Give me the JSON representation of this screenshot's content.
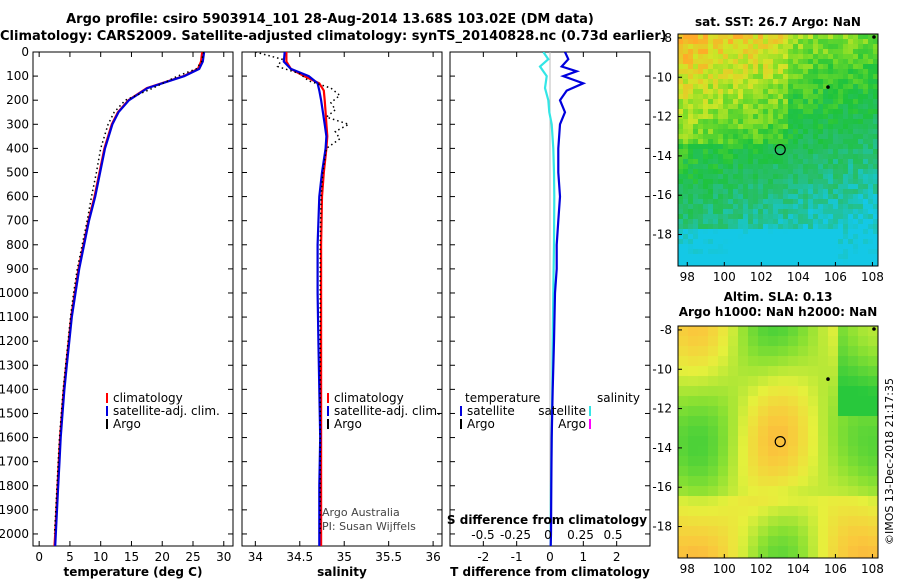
{
  "header": {
    "line1": "Argo profile: csiro 5903914_101 28-Aug-2014 13.68S 103.02E (DM data)",
    "line2": "Climatology: CARS2009. Satellite-adjusted climatology: synTS_20140828.nc (0.73d earlier)"
  },
  "colors": {
    "climatology": "#ff0000",
    "satellite": "#0000dd",
    "argo": "#000000",
    "sal_satellite": "#33e6e6",
    "sal_argo": "#ff00ff"
  },
  "chart_data": [
    {
      "type": "line",
      "id": "temperature",
      "xlabel": "temperature (deg C)",
      "ylabel": "",
      "xlim": [
        -1,
        31.5
      ],
      "ylim": [
        2050,
        0
      ],
      "xticks": [
        0,
        5,
        10,
        15,
        20,
        25,
        30
      ],
      "yticks": [
        0,
        100,
        200,
        300,
        400,
        500,
        600,
        700,
        800,
        900,
        1000,
        1100,
        1200,
        1300,
        1400,
        1500,
        1600,
        1700,
        1800,
        1900,
        2000
      ],
      "legend": [
        "climatology",
        "satellite-adj. clim.",
        "Argo"
      ],
      "series": [
        {
          "name": "climatology",
          "depth": [
            0,
            40,
            70,
            100,
            150,
            200,
            250,
            300,
            400,
            500,
            600,
            700,
            800,
            900,
            1000,
            1100,
            1200,
            1300,
            1400,
            1500,
            1600,
            1700,
            1800,
            1900,
            2000,
            2050
          ],
          "values": [
            26.5,
            26.3,
            25.8,
            23.5,
            17.5,
            14.5,
            12.8,
            11.8,
            10.6,
            9.8,
            9.0,
            8.0,
            7.2,
            6.4,
            5.8,
            5.2,
            4.8,
            4.4,
            4.0,
            3.7,
            3.4,
            3.2,
            3.0,
            2.8,
            2.6,
            2.5
          ]
        },
        {
          "name": "satellite-adj. clim.",
          "depth": [
            0,
            40,
            70,
            100,
            150,
            200,
            250,
            300,
            400,
            500,
            600,
            700,
            800,
            900,
            1000,
            1100,
            1200,
            1300,
            1400,
            1500,
            1600,
            1700,
            1800,
            1900,
            2000,
            2050
          ],
          "values": [
            26.8,
            26.6,
            26.0,
            23.6,
            17.6,
            14.6,
            12.9,
            11.9,
            10.7,
            9.9,
            9.1,
            8.1,
            7.3,
            6.5,
            5.9,
            5.3,
            4.9,
            4.5,
            4.1,
            3.8,
            3.5,
            3.3,
            3.1,
            2.9,
            2.7,
            2.6
          ]
        },
        {
          "name": "Argo",
          "depth": [
            0,
            40,
            70,
            100,
            150,
            200,
            250,
            300,
            400,
            500,
            600,
            700,
            800,
            900,
            1000,
            1100,
            1200,
            1300,
            1400,
            1500,
            1600,
            1700,
            1800,
            1900,
            2000
          ],
          "values": [
            26.7,
            26.4,
            25.5,
            22.5,
            18.5,
            14.0,
            12.2,
            11.2,
            10.0,
            9.3,
            8.5,
            7.8,
            7.0,
            6.2,
            5.6,
            5.1,
            4.7,
            4.3,
            3.9,
            3.6,
            3.3,
            3.1,
            2.9,
            2.7,
            2.5
          ]
        }
      ]
    },
    {
      "type": "line",
      "id": "salinity",
      "xlabel": "salinity",
      "xlim": [
        33.85,
        36.1
      ],
      "ylim": [
        2050,
        0
      ],
      "xticks": [
        34,
        34.5,
        35,
        35.5,
        36
      ],
      "legend": [
        "climatology",
        "satellite-adj. clim.",
        "Argo"
      ],
      "annotations": [
        "Argo Australia",
        "PI: Susan Wijffels"
      ],
      "series": [
        {
          "name": "climatology",
          "depth": [
            0,
            40,
            70,
            100,
            130,
            160,
            200,
            250,
            300,
            350,
            400,
            500,
            600,
            800,
            1000,
            1200,
            1400,
            1600,
            1800,
            2000,
            2050
          ],
          "values": [
            34.35,
            34.35,
            34.4,
            34.55,
            34.72,
            34.77,
            34.78,
            34.79,
            34.8,
            34.81,
            34.8,
            34.77,
            34.75,
            34.74,
            34.74,
            34.74,
            34.74,
            34.74,
            34.74,
            34.74,
            34.74
          ]
        },
        {
          "name": "satellite-adj. clim.",
          "depth": [
            0,
            40,
            70,
            100,
            130,
            160,
            200,
            250,
            300,
            350,
            400,
            500,
            600,
            800,
            1000,
            1200,
            1400,
            1600,
            1800,
            2000,
            2050
          ],
          "values": [
            34.33,
            34.32,
            34.4,
            34.6,
            34.7,
            34.72,
            34.74,
            34.76,
            34.78,
            34.8,
            34.79,
            34.75,
            34.72,
            34.7,
            34.7,
            34.71,
            34.72,
            34.73,
            34.72,
            34.72,
            34.72
          ]
        },
        {
          "name": "Argo",
          "depth": [
            0,
            30,
            60,
            90,
            120,
            150,
            180,
            210,
            240,
            270,
            300,
            330,
            360,
            400,
            500,
            600,
            800,
            1000,
            1200,
            1400,
            1600,
            1800,
            2000
          ],
          "values": [
            34.0,
            34.3,
            34.25,
            34.5,
            34.6,
            34.85,
            34.95,
            34.85,
            34.9,
            34.8,
            35.05,
            34.9,
            34.95,
            34.8,
            34.76,
            34.74,
            34.73,
            34.73,
            34.73,
            34.73,
            34.73,
            34.73,
            34.73
          ]
        }
      ]
    },
    {
      "type": "line",
      "id": "difference",
      "xlabel": "T difference from climatology",
      "xlabel_top": "S difference from climatology",
      "xlim": [
        -3,
        3
      ],
      "ylim": [
        2050,
        0
      ],
      "xticks": [
        -2,
        -1,
        0,
        1,
        2
      ],
      "xticks_top": [
        "-0.5",
        "-0.25",
        "0",
        "0.25",
        "0.5"
      ],
      "legend_left_title": "temperature",
      "legend_right_title": "salinity",
      "legend": [
        "satellite",
        "Argo",
        "satellite",
        "Argo"
      ],
      "series": [
        {
          "name": "T satellite",
          "depth": [
            0,
            30,
            60,
            80,
            100,
            130,
            160,
            200,
            250,
            300,
            400,
            500,
            600,
            700,
            800,
            900,
            1000,
            1200,
            1400,
            1600,
            1800,
            2000,
            2050
          ],
          "values": [
            0.45,
            0.55,
            0.35,
            0.8,
            0.4,
            1.0,
            0.5,
            0.3,
            0.45,
            0.3,
            0.25,
            0.25,
            0.3,
            0.25,
            0.2,
            0.2,
            0.15,
            0.12,
            0.08,
            0.05,
            0.04,
            0.03,
            0.02
          ]
        },
        {
          "name": "S satellite",
          "depth": [
            0,
            30,
            60,
            100,
            150,
            200,
            250,
            300,
            400,
            500,
            600,
            800,
            1000,
            1200,
            1400,
            1600,
            1800,
            2000,
            2050
          ],
          "values": [
            -0.2,
            -0.05,
            -0.3,
            -0.1,
            -0.15,
            -0.05,
            -0.02,
            0.05,
            0.1,
            0.12,
            0.13,
            0.12,
            0.1,
            0.08,
            0.07,
            0.05,
            0.03,
            0.02,
            0.02
          ]
        }
      ]
    },
    {
      "type": "heatmap",
      "id": "sst-map",
      "title": "sat. SST: 26.7 Argo: NaN",
      "xticks": [
        98,
        100,
        102,
        104,
        106,
        108
      ],
      "yticks": [
        -8,
        -10,
        -12,
        -14,
        -16,
        -18
      ],
      "xlim": [
        97.5,
        108.3
      ],
      "ylim": [
        -19.6,
        -7.8
      ],
      "argo_position": {
        "lon": 103.02,
        "lat": -13.68
      }
    },
    {
      "type": "heatmap",
      "id": "sla-map",
      "title_line1": "Altim. SLA: 0.13",
      "title_line2": "Argo h1000: NaN h2000: NaN",
      "xticks": [
        98,
        100,
        102,
        104,
        106,
        108
      ],
      "yticks": [
        -8,
        -10,
        -12,
        -14,
        -16,
        -18
      ],
      "xlim": [
        97.5,
        108.3
      ],
      "ylim": [
        -19.6,
        -7.8
      ],
      "argo_position": {
        "lon": 103.02,
        "lat": -13.68
      }
    }
  ],
  "side_stamp": "©IMOS 13-Dec-2018 21:17:35"
}
